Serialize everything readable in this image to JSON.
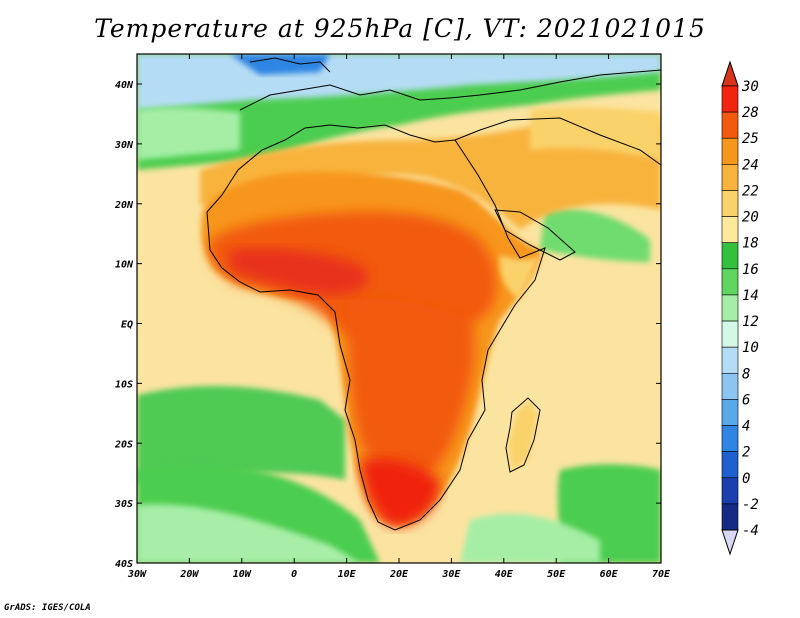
{
  "title": "Temperature at 925hPa [C], VT: 2021021015",
  "credit": "GrADS: IGES/COLA",
  "lon_ticks": [
    "30W",
    "20W",
    "10W",
    "0",
    "10E",
    "20E",
    "30E",
    "40E",
    "50E",
    "60E",
    "70E"
  ],
  "lat_ticks": [
    "40N",
    "30N",
    "20N",
    "10N",
    "EQ",
    "10S",
    "20S",
    "30S",
    "40S"
  ],
  "colorbar": {
    "levels": [
      "30",
      "28",
      "25",
      "24",
      "22",
      "20",
      "18",
      "16",
      "14",
      "12",
      "10",
      "8",
      "6",
      "4",
      "2",
      "0",
      "-2",
      "-4"
    ],
    "colors": [
      "#f0240f",
      "#f25a10",
      "#f7961c",
      "#f8b33d",
      "#fad26a",
      "#fde99b",
      "#33c03c",
      "#5fd65f",
      "#a6eea6",
      "#d5f7e6",
      "#b5dcf5",
      "#8cc6f0",
      "#5aa8ea",
      "#2f85e2",
      "#1f5fcf",
      "#1a3fae",
      "#142a85"
    ],
    "under_color": "#d8d8f5",
    "over_color": "#d8351a"
  }
}
